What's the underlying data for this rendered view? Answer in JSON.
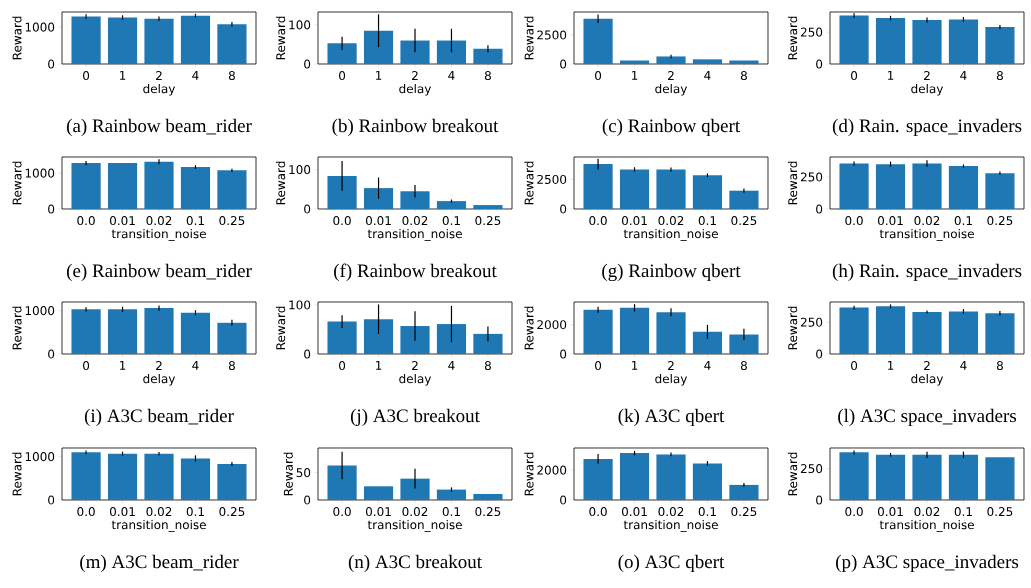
{
  "chart_data": [
    {
      "type": "bar",
      "title": "(a) Rainbow beam_rider",
      "xlabel": "delay",
      "ylabel": "Reward",
      "categories": [
        "0",
        "1",
        "2",
        "4",
        "8"
      ],
      "values": [
        1290,
        1260,
        1230,
        1310,
        1080
      ],
      "errors": [
        60,
        60,
        60,
        50,
        60
      ],
      "color": "#1f77b4",
      "ylim": [
        0,
        1410
      ],
      "yticks": [
        0,
        1000
      ]
    },
    {
      "type": "bar",
      "title": "(b) Rainbow breakout",
      "xlabel": "delay",
      "ylabel": "Reward",
      "categories": [
        "0",
        "1",
        "2",
        "4",
        "8"
      ],
      "values": [
        53,
        85,
        60,
        60,
        39
      ],
      "errors": [
        17,
        42,
        30,
        30,
        9
      ],
      "color": "#1f77b4",
      "ylim": [
        0,
        133
      ],
      "yticks": [
        0,
        100
      ]
    },
    {
      "type": "bar",
      "title": "(c) Rainbow qbert",
      "xlabel": "delay",
      "ylabel": "Reward",
      "categories": [
        "0",
        "1",
        "2",
        "4",
        "8"
      ],
      "values": [
        3900,
        300,
        650,
        400,
        300
      ],
      "errors": [
        360,
        null,
        150,
        null,
        null
      ],
      "color": "#1f77b4",
      "ylim": [
        0,
        4480
      ],
      "yticks": [
        0,
        2500
      ]
    },
    {
      "type": "bar",
      "title": "(d) Rain. space_invaders",
      "xlabel": "delay",
      "ylabel": "Reward",
      "categories": [
        "0",
        "1",
        "2",
        "4",
        "8"
      ],
      "values": [
        380,
        360,
        345,
        350,
        290
      ],
      "errors": [
        18,
        18,
        20,
        18,
        15
      ],
      "color": "#1f77b4",
      "ylim": [
        0,
        408
      ],
      "yticks": [
        0,
        250
      ]
    },
    {
      "type": "bar",
      "title": "(e) Rainbow beam_rider",
      "xlabel": "transition_noise",
      "ylabel": "Reward",
      "categories": [
        "0.0",
        "0.01",
        "0.02",
        "0.1",
        "0.25"
      ],
      "values": [
        1280,
        1280,
        1320,
        1170,
        1080
      ],
      "errors": [
        60,
        null,
        70,
        50,
        45
      ],
      "color": "#1f77b4",
      "ylim": [
        0,
        1450
      ],
      "yticks": [
        0,
        1000
      ]
    },
    {
      "type": "bar",
      "title": "(f) Rainbow breakout",
      "xlabel": "transition_noise",
      "ylabel": "Reward",
      "categories": [
        "0.0",
        "0.01",
        "0.02",
        "0.1",
        "0.25"
      ],
      "values": [
        84,
        53,
        45,
        20,
        10
      ],
      "errors": [
        38,
        27,
        16,
        4,
        null
      ],
      "color": "#1f77b4",
      "ylim": [
        0,
        132
      ],
      "yticks": [
        0,
        100
      ]
    },
    {
      "type": "bar",
      "title": "(g) Rainbow qbert",
      "xlabel": "transition_noise",
      "ylabel": "Reward",
      "categories": [
        "0.0",
        "0.01",
        "0.02",
        "0.1",
        "0.25"
      ],
      "values": [
        3800,
        3350,
        3350,
        2850,
        1550
      ],
      "errors": [
        450,
        180,
        170,
        150,
        180
      ],
      "color": "#1f77b4",
      "ylim": [
        0,
        4400
      ],
      "yticks": [
        0,
        2500
      ]
    },
    {
      "type": "bar",
      "title": "(h) Rain. space_invaders",
      "xlabel": "transition_noise",
      "ylabel": "Reward",
      "categories": [
        "0.0",
        "0.01",
        "0.02",
        "0.1",
        "0.25"
      ],
      "values": [
        355,
        350,
        355,
        335,
        280
      ],
      "errors": [
        15,
        20,
        25,
        12,
        12
      ],
      "color": "#1f77b4",
      "ylim": [
        0,
        406
      ],
      "yticks": [
        0,
        250
      ]
    },
    {
      "type": "bar",
      "title": "(i) A3C beam_rider",
      "xlabel": "delay",
      "ylabel": "Reward",
      "categories": [
        "0",
        "1",
        "2",
        "4",
        "8"
      ],
      "values": [
        1030,
        1030,
        1060,
        950,
        720
      ],
      "errors": [
        50,
        60,
        60,
        60,
        70
      ],
      "color": "#1f77b4",
      "ylim": [
        0,
        1200
      ],
      "yticks": [
        0,
        1000
      ]
    },
    {
      "type": "bar",
      "title": "(j) A3C breakout",
      "xlabel": "delay",
      "ylabel": "Reward",
      "categories": [
        "0",
        "1",
        "2",
        "4",
        "8"
      ],
      "values": [
        66,
        71,
        57,
        61,
        41
      ],
      "errors": [
        13,
        30,
        30,
        37,
        15
      ],
      "color": "#1f77b4",
      "ylim": [
        0,
        106
      ],
      "yticks": [
        0,
        100
      ]
    },
    {
      "type": "bar",
      "title": "(k) A3C qbert",
      "xlabel": "delay",
      "ylabel": "Reward",
      "categories": [
        "0",
        "1",
        "2",
        "4",
        "8"
      ],
      "values": [
        3020,
        3150,
        2850,
        1520,
        1330
      ],
      "errors": [
        200,
        250,
        280,
        470,
        400
      ],
      "color": "#1f77b4",
      "ylim": [
        0,
        3550
      ],
      "yticks": [
        0,
        2000
      ]
    },
    {
      "type": "bar",
      "title": "(l) A3C space_invaders",
      "xlabel": "delay",
      "ylabel": "Reward",
      "categories": [
        "0",
        "1",
        "2",
        "4",
        "8"
      ],
      "values": [
        365,
        375,
        330,
        335,
        320
      ],
      "errors": [
        15,
        15,
        12,
        18,
        18
      ],
      "color": "#1f77b4",
      "ylim": [
        0,
        409
      ],
      "yticks": [
        0,
        250
      ]
    },
    {
      "type": "bar",
      "title": "(m) A3C beam_rider",
      "xlabel": "transition_noise",
      "ylabel": "Reward",
      "categories": [
        "0.0",
        "0.01",
        "0.02",
        "0.1",
        "0.25"
      ],
      "values": [
        1100,
        1070,
        1070,
        960,
        830
      ],
      "errors": [
        40,
        45,
        35,
        70,
        45
      ],
      "color": "#1f77b4",
      "ylim": [
        0,
        1200
      ],
      "yticks": [
        0,
        1000
      ]
    },
    {
      "type": "bar",
      "title": "(n) A3C breakout",
      "xlabel": "transition_noise",
      "ylabel": "Reward",
      "categories": [
        "0.0",
        "0.01",
        "0.02",
        "0.1",
        "0.25"
      ],
      "values": [
        63,
        25,
        39,
        19,
        11
      ],
      "errors": [
        25,
        null,
        18,
        4,
        null
      ],
      "color": "#1f77b4",
      "ylim": [
        0,
        95
      ],
      "yticks": [
        0,
        50
      ]
    },
    {
      "type": "bar",
      "title": "(o) A3C qbert",
      "xlabel": "transition_noise",
      "ylabel": "Reward",
      "categories": [
        "0.0",
        "0.01",
        "0.02",
        "0.1",
        "0.25"
      ],
      "values": [
        2750,
        3140,
        3050,
        2450,
        1010
      ],
      "errors": [
        330,
        150,
        130,
        150,
        130
      ],
      "color": "#1f77b4",
      "ylim": [
        0,
        3480
      ],
      "yticks": [
        0,
        2000
      ]
    },
    {
      "type": "bar",
      "title": "(p) A3C space_invaders",
      "xlabel": "transition_noise",
      "ylabel": "Reward",
      "categories": [
        "0.0",
        "0.01",
        "0.02",
        "0.1",
        "0.25"
      ],
      "values": [
        380,
        360,
        360,
        360,
        340
      ],
      "errors": [
        15,
        14,
        25,
        25,
        null
      ],
      "color": "#1f77b4",
      "ylim": [
        0,
        414
      ],
      "yticks": [
        0,
        250
      ]
    }
  ]
}
